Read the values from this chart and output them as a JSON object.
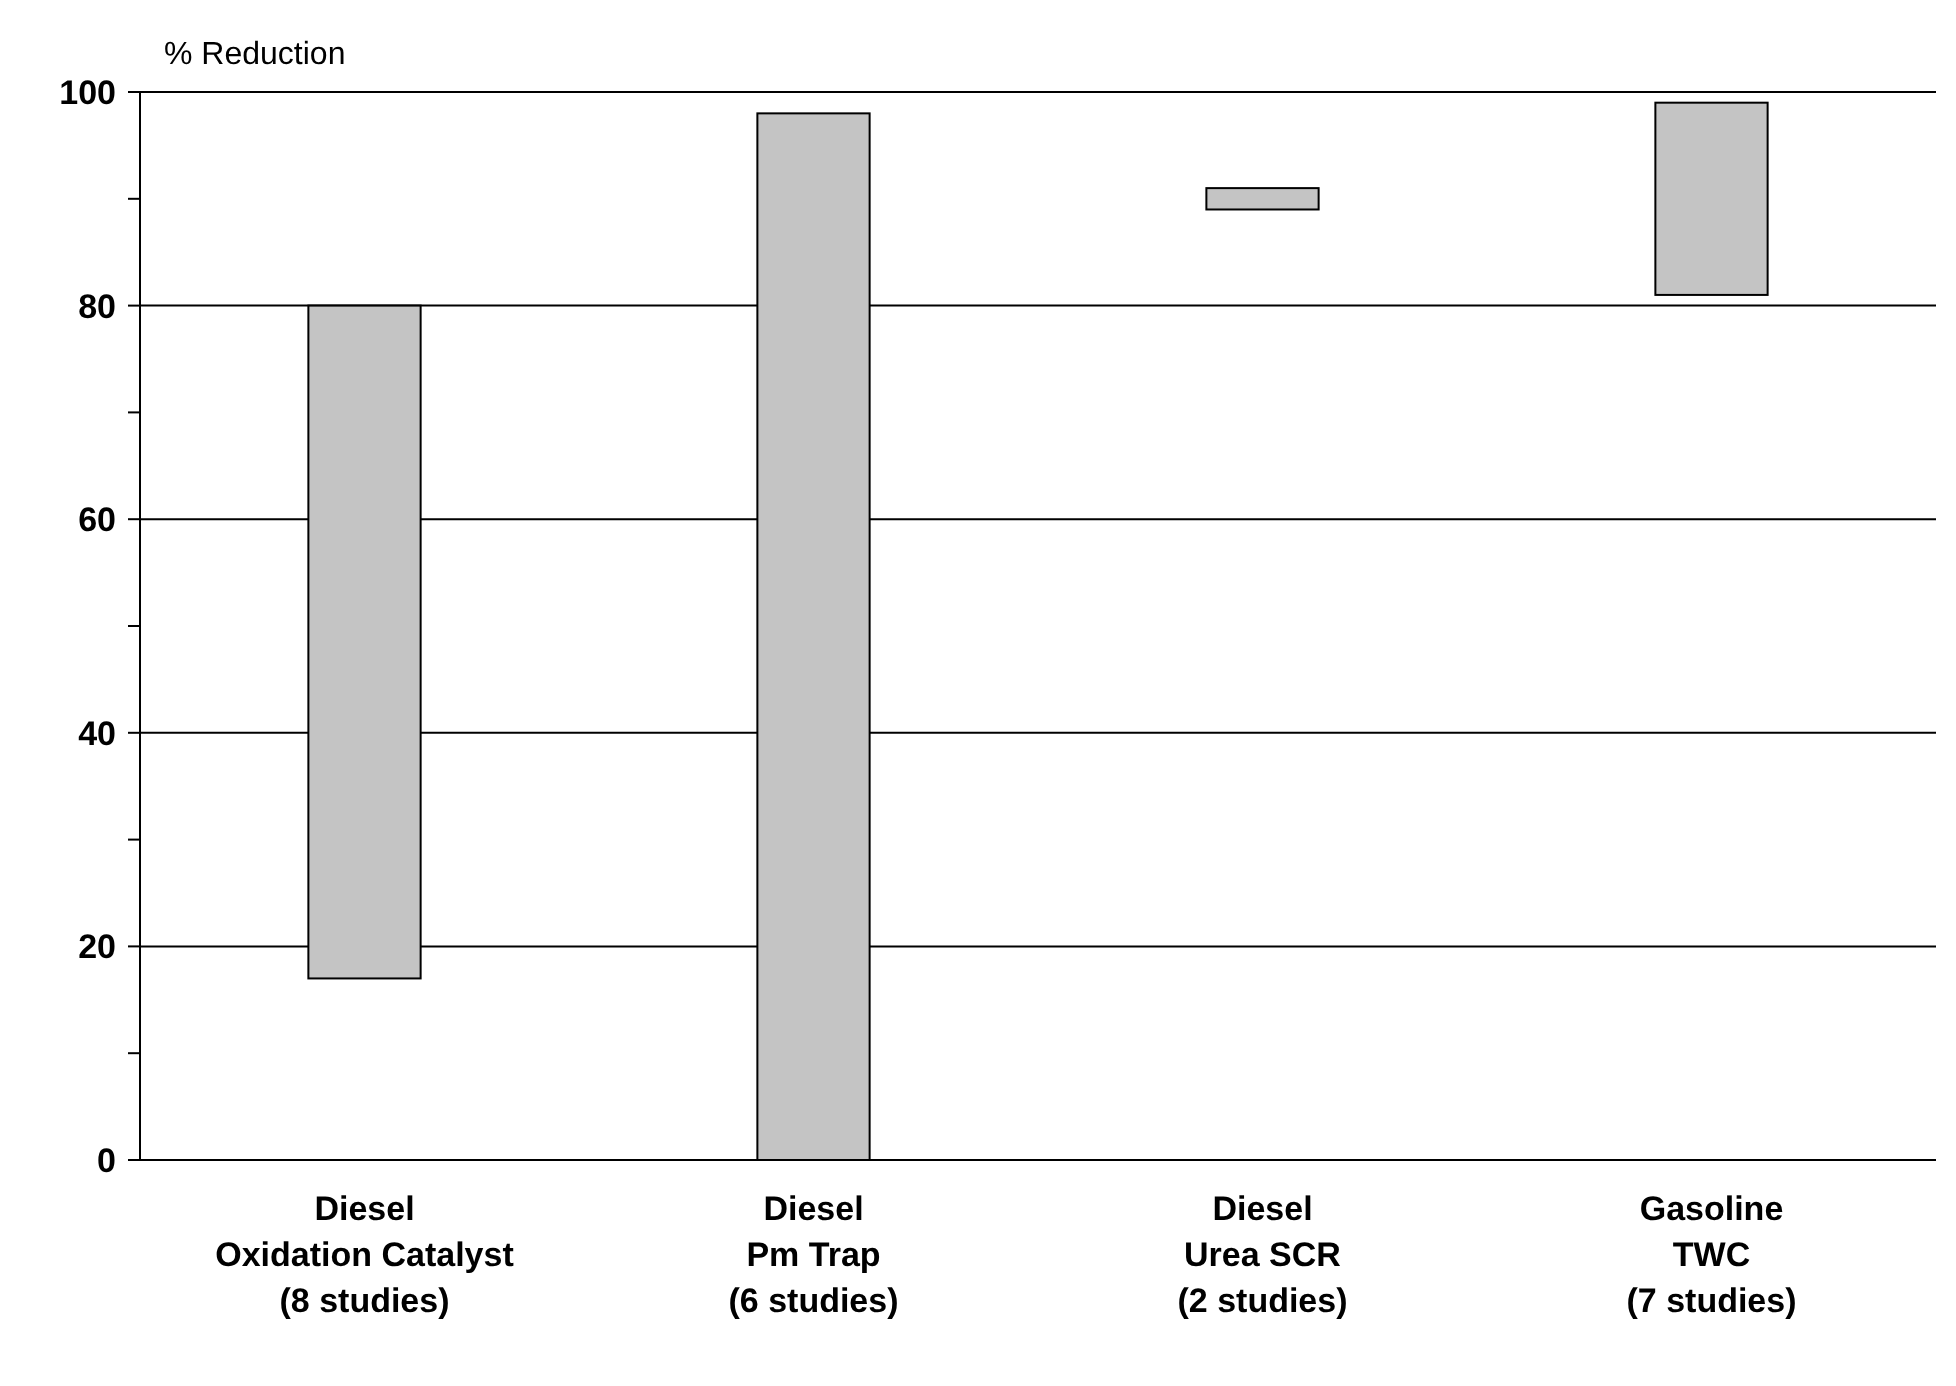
{
  "chart_data": {
    "type": "bar",
    "ylabel": "% Reduction",
    "categories": [
      "Diesel\nOxidation Catalyst\n(8 studies)",
      "Diesel\nPm Trap\n(6 studies)",
      "Diesel\nUrea SCR\n(2 studies)",
      "Gasoline\nTWC\n(7 studies)"
    ],
    "base": [
      17,
      0,
      89,
      81
    ],
    "values": [
      63,
      98,
      2,
      18
    ],
    "color": "#c4c4c4",
    "ylim": [
      0,
      100
    ],
    "yticks": [
      0,
      {
        "value": 10,
        "label": null
      },
      20,
      {
        "value": 30,
        "label": null
      },
      40,
      {
        "value": 50,
        "label": null
      },
      60,
      {
        "value": 70,
        "label": null
      },
      80,
      {
        "value": 90,
        "label": null
      },
      100
    ],
    "grid": "y"
  }
}
